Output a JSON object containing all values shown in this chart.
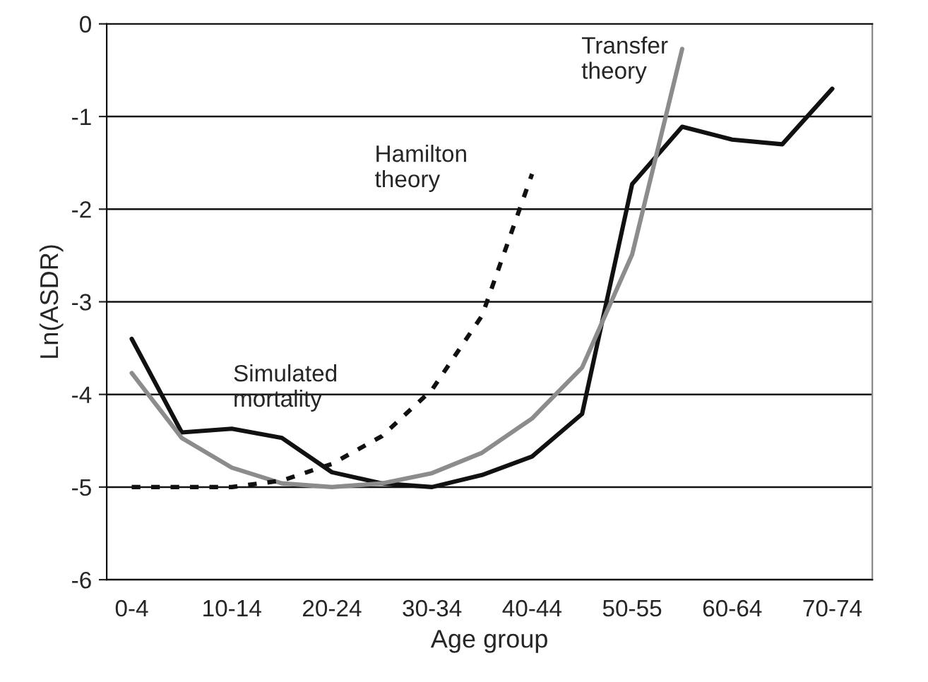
{
  "chart_data": {
    "type": "line",
    "xlabel": "Age group",
    "ylabel": "Ln(ASDR)",
    "categories": [
      "0-4",
      null,
      "10-14",
      null,
      "20-24",
      null,
      "30-34",
      null,
      "40-44",
      null,
      "50-55",
      null,
      "60-64",
      null,
      "70-74"
    ],
    "series": [
      {
        "color": "#111111",
        "line_style": "solid",
        "values": [
          -3.4,
          -4.41,
          -4.37,
          -4.47,
          -4.84,
          -4.96,
          -5.0,
          -4.87,
          -4.67,
          -4.21,
          -1.73,
          -1.11,
          -1.25,
          -1.3,
          -0.7
        ]
      },
      {
        "color": "#8c8c8c",
        "line_style": "solid",
        "values": [
          -3.77,
          -4.47,
          -4.79,
          -4.96,
          -5.0,
          -4.96,
          -4.85,
          -4.63,
          -4.26,
          -3.71,
          -2.49,
          -0.27,
          null,
          null,
          null
        ]
      },
      {
        "color": "#111111",
        "line_style": "dotted",
        "values": [
          -5.0,
          -5.0,
          -5.0,
          -4.93,
          -4.75,
          -4.45,
          -3.95,
          -3.15,
          -1.62,
          null,
          null,
          null,
          null,
          null,
          null
        ]
      }
    ],
    "annotations": [
      "Simulated\nmortality",
      "Transfer\ntheory",
      "Hamilton\ntheory"
    ],
    "ylim": [
      -6,
      0
    ],
    "yticks": [
      -6,
      -5,
      -4,
      -3,
      -2,
      -1,
      0
    ],
    "grid": "y",
    "legend": false,
    "marker": "none"
  }
}
